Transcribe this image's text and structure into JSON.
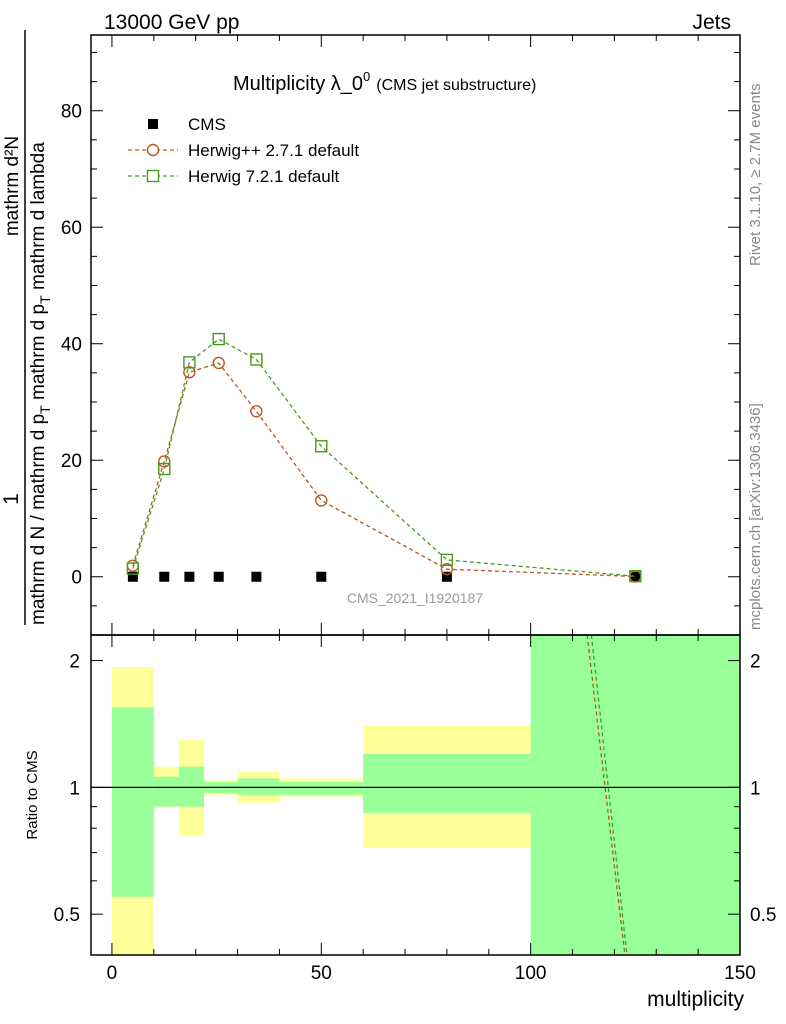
{
  "header": {
    "left": "13000 GeV pp",
    "right": "Jets"
  },
  "side_text": {
    "rivet": "Rivet 3.1.10, ≥ 2.7M events",
    "mcplots": "mcplots.cern.ch [arXiv:1306.3436]"
  },
  "watermark": "CMS_2021_I1920187",
  "chart_data": [
    {
      "type": "line",
      "title_main": "Multiplicity λ_0",
      "title_sup": "0",
      "title_sub": "(CMS jet substructure)",
      "ylabel_top": "1",
      "ylabel_num": "mathrm d²N",
      "ylabel_den": "mathrm d N / mathrm d p",
      "ylabel_den_sub": "T",
      "ylabel_den_tail": " mathrm d p",
      "ylabel_den_sub2": "T",
      "ylabel_den_tail2": " mathrm d lambda",
      "xlim": [
        -5,
        150
      ],
      "ylim": [
        -10,
        93
      ],
      "yticks": [
        0,
        20,
        40,
        60,
        80
      ],
      "legend_position": "top-left",
      "legend": [
        {
          "label": "CMS",
          "marker": "filled-square",
          "color": "#000000"
        },
        {
          "label": "Herwig++ 2.7.1 default",
          "marker": "open-circle",
          "color": "#b35a1f"
        },
        {
          "label": "Herwig 7.2.1 default",
          "marker": "open-square",
          "color": "#4a9a1e"
        }
      ],
      "series": [
        {
          "name": "CMS",
          "x": [
            5,
            12.5,
            18.5,
            25.5,
            34.5,
            50,
            80,
            125
          ],
          "y": [
            0,
            0,
            0,
            0,
            0,
            0,
            0,
            0
          ]
        },
        {
          "name": "Herwig++ 2.7.1 default",
          "x": [
            5,
            12.5,
            18.5,
            25.5,
            34.5,
            50,
            80,
            125
          ],
          "y": [
            1.9,
            19.8,
            35.1,
            36.7,
            28.4,
            13.1,
            1.3,
            0.05
          ]
        },
        {
          "name": "Herwig 7.2.1 default",
          "x": [
            5,
            12.5,
            18.5,
            25.5,
            34.5,
            50,
            80,
            125
          ],
          "y": [
            1.4,
            18.5,
            36.8,
            40.8,
            37.3,
            22.4,
            2.9,
            0.1
          ]
        }
      ]
    },
    {
      "type": "band",
      "ylabel": "Ratio to CMS",
      "xlabel": "multiplicity",
      "log_y": true,
      "ylim": [
        0.4,
        2.3
      ],
      "yticks": [
        0.5,
        1,
        2
      ],
      "xticks": [
        0,
        50,
        100,
        150
      ],
      "bins": [
        {
          "x": [
            0,
            10
          ],
          "yellow": [
            0.2,
            1.93
          ],
          "green": [
            0.55,
            1.55
          ]
        },
        {
          "x": [
            10,
            16
          ],
          "yellow": [
            0.9,
            1.12
          ],
          "green": [
            0.9,
            1.06
          ]
        },
        {
          "x": [
            16,
            22
          ],
          "yellow": [
            0.77,
            1.3
          ],
          "green": [
            0.9,
            1.12
          ]
        },
        {
          "x": [
            22,
            30
          ],
          "yellow": [
            0.96,
            1.04
          ],
          "green": [
            0.97,
            1.03
          ]
        },
        {
          "x": [
            30,
            40
          ],
          "yellow": [
            0.92,
            1.09
          ],
          "green": [
            0.96,
            1.05
          ]
        },
        {
          "x": [
            40,
            60
          ],
          "yellow": [
            0.95,
            1.05
          ],
          "green": [
            0.96,
            1.03
          ]
        },
        {
          "x": [
            60,
            100
          ],
          "yellow": [
            0.72,
            1.4
          ],
          "green": [
            0.87,
            1.2
          ]
        },
        {
          "x": [
            100,
            150
          ],
          "yellow": [
            0.1,
            10
          ],
          "green": [
            0.1,
            10
          ]
        }
      ],
      "ratio_lines": [
        {
          "name": "Herwig++ 2.7.1 default",
          "points": [
            [
              113.5,
              2.3
            ],
            [
              122.5,
              0.4
            ]
          ]
        },
        {
          "name": "Herwig 7.2.1 default",
          "points": [
            [
              114.5,
              2.3
            ],
            [
              123.0,
              0.4
            ]
          ]
        }
      ]
    }
  ]
}
